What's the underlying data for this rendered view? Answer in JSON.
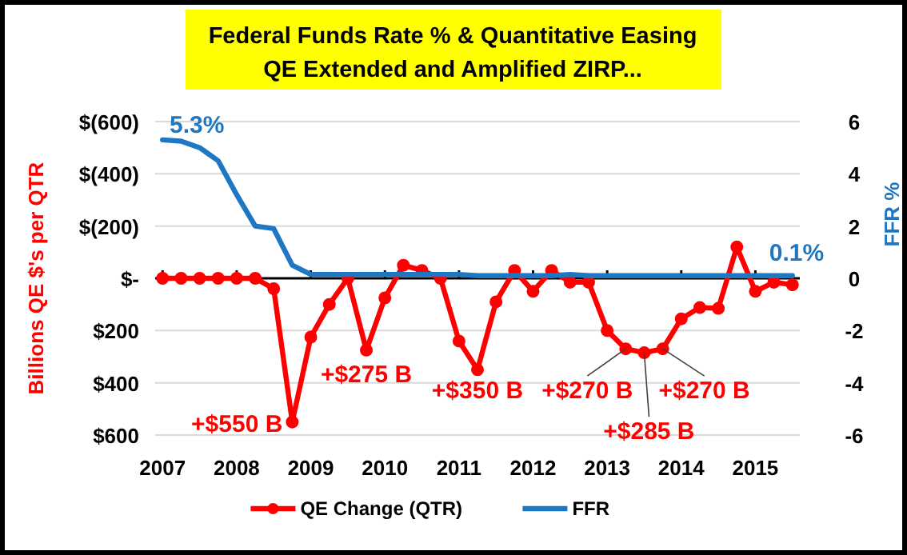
{
  "chart_data": {
    "type": "line",
    "title": "Federal Funds Rate % & Quantitative Easing",
    "subtitle": "QE Extended and Amplified ZIRP...",
    "ylabel": "Billions QE $'s per QTR",
    "y2label": "FFR %",
    "x": [
      2007,
      2007.25,
      2007.5,
      2007.75,
      2008,
      2008.25,
      2008.5,
      2008.75,
      2009,
      2009.25,
      2009.5,
      2009.75,
      2010,
      2010.25,
      2010.5,
      2010.75,
      2011,
      2011.25,
      2011.5,
      2011.75,
      2012,
      2012.25,
      2012.5,
      2012.75,
      2013,
      2013.25,
      2013.5,
      2013.75,
      2014,
      2014.25,
      2014.5,
      2014.75,
      2015,
      2015.25,
      2015.5
    ],
    "xlim": [
      2006.9,
      2015.6
    ],
    "xticks": [
      2007,
      2008,
      2009,
      2010,
      2011,
      2012,
      2013,
      2014,
      2015
    ],
    "ylim": [
      600,
      -600
    ],
    "yticks": [
      {
        "value": -600,
        "label": "$(600)"
      },
      {
        "value": -400,
        "label": "$(400)"
      },
      {
        "value": -200,
        "label": "$(200)"
      },
      {
        "value": 0,
        "label": "$-"
      },
      {
        "value": 200,
        "label": "$200"
      },
      {
        "value": 400,
        "label": "$400"
      },
      {
        "value": 600,
        "label": "$600"
      }
    ],
    "y2lim": [
      -6,
      6
    ],
    "y2ticks": [
      -6,
      -4,
      -2,
      0,
      2,
      4,
      6
    ],
    "series": [
      {
        "name": "QE Change (QTR)",
        "color": "#ff0000",
        "marker": "circle",
        "values": [
          0,
          0,
          0,
          0,
          0,
          0,
          40,
          550,
          225,
          100,
          0,
          275,
          75,
          -50,
          -30,
          0,
          240,
          350,
          90,
          -30,
          50,
          -30,
          15,
          15,
          200,
          270,
          285,
          270,
          155,
          112,
          115,
          -120,
          50,
          15,
          25
        ]
      },
      {
        "name": "FFR",
        "color": "#1f77c4",
        "axis": "y2",
        "marker": "none",
        "values": [
          5.3,
          5.25,
          5.0,
          4.5,
          3.2,
          2.0,
          1.9,
          0.5,
          0.15,
          0.15,
          0.15,
          0.15,
          0.15,
          0.15,
          0.15,
          0.15,
          0.15,
          0.1,
          0.1,
          0.1,
          0.1,
          0.1,
          0.15,
          0.1,
          0.1,
          0.1,
          0.1,
          0.1,
          0.1,
          0.1,
          0.1,
          0.1,
          0.1,
          0.1,
          0.1
        ]
      }
    ],
    "annotations": [
      "5.3%",
      "0.1%",
      {
        "text": "+$550 B",
        "x": 2008.75,
        "y": 550
      },
      {
        "text": "+$275 B",
        "x": 2009.75,
        "y": 275
      },
      {
        "text": "+$350 B",
        "x": 2011.25,
        "y": 350
      },
      {
        "text": "+$270 B",
        "x": 2013.25,
        "y": 270
      },
      {
        "text": "+$285 B",
        "x": 2013.5,
        "y": 285
      },
      {
        "text": "+$270 B",
        "x": 2013.75,
        "y": 270
      }
    ],
    "grid": "y",
    "legend": "bottom"
  }
}
